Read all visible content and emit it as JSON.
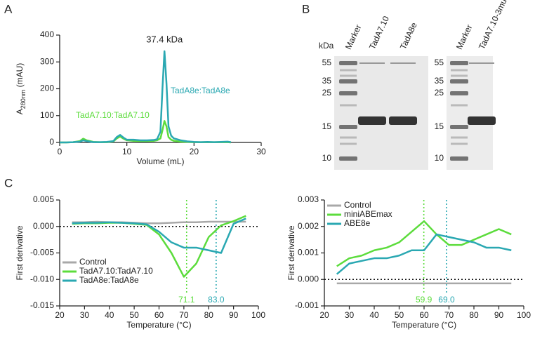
{
  "panel_labels": [
    "A",
    "B",
    "C"
  ],
  "chart_data": [
    {
      "type": "line",
      "x_label": "Volume (mL)",
      "y_label": [
        "A",
        "280nm",
        " (mAU)"
      ],
      "annotations": [
        "37.4 kDa"
      ],
      "x": [
        0,
        1,
        2,
        3,
        3.5,
        4,
        5,
        6,
        7,
        8,
        8.5,
        9,
        9.5,
        10,
        11,
        12,
        13,
        14,
        14.5,
        15,
        15.3,
        15.6,
        15.9,
        16.2,
        16.6,
        17,
        18,
        19,
        20,
        21,
        22,
        23,
        24,
        25,
        25.5
      ],
      "series": [
        {
          "name": "TadA7.10:TadA7.10",
          "color": "#5cdc3c",
          "values": [
            0,
            0,
            1,
            5,
            14,
            8,
            2,
            1,
            1,
            4,
            15,
            22,
            14,
            8,
            6,
            5,
            5,
            6,
            8,
            15,
            45,
            80,
            60,
            20,
            10,
            6,
            3,
            2,
            1,
            1,
            1,
            1,
            1,
            1,
            0
          ]
        },
        {
          "name": "TadA8e:TadA8e",
          "color": "#2aa8b2",
          "values": [
            0,
            0,
            1,
            3,
            8,
            5,
            1,
            1,
            2,
            5,
            20,
            28,
            18,
            10,
            10,
            8,
            8,
            9,
            12,
            40,
            200,
            340,
            220,
            60,
            25,
            15,
            8,
            4,
            2,
            1,
            2,
            1,
            2,
            3,
            1
          ]
        }
      ],
      "xlim": [
        0,
        30
      ],
      "xticks": [
        0,
        10,
        20,
        30
      ],
      "ylim": [
        0,
        400
      ],
      "yticks": [
        0,
        100,
        200,
        300,
        400
      ]
    },
    {
      "type": "line",
      "x_label": "Temperature (°C)",
      "y_label": [
        "First derivative"
      ],
      "legend": "lower left",
      "x": [
        25,
        30,
        35,
        40,
        45,
        50,
        55,
        60,
        65,
        70,
        75,
        80,
        85,
        90,
        95
      ],
      "series": [
        {
          "name": "Control",
          "color": "#a8a8a8",
          "values": [
            0.0008,
            0.0008,
            0.0009,
            0.0008,
            0.0008,
            0.0007,
            0.0006,
            0.0006,
            0.0007,
            0.0008,
            0.0008,
            0.0009,
            0.0009,
            0.0009,
            0.0009
          ]
        },
        {
          "name": "TadA7.10:TadA7.10",
          "color": "#5cdc3c",
          "values": [
            0.0005,
            0.0006,
            0.0006,
            0.0007,
            0.0007,
            0.0005,
            0.0003,
            -0.0015,
            -0.005,
            -0.0095,
            -0.007,
            -0.002,
            0.0002,
            0.001,
            0.002
          ]
        },
        {
          "name": "TadA8e:TadA8e",
          "color": "#2aa8b2",
          "values": [
            0.0006,
            0.0007,
            0.0007,
            0.0008,
            0.0007,
            0.0006,
            0.0004,
            -0.001,
            -0.003,
            -0.004,
            -0.004,
            -0.0045,
            -0.005,
            0.0005,
            0.0015
          ]
        }
      ],
      "hline": 0,
      "vlines": [
        {
          "value": 71.1,
          "label": "71.1",
          "color": "#5cdc3c"
        },
        {
          "value": 83.0,
          "label": "83.0",
          "color": "#2aa8b2"
        }
      ],
      "xlim": [
        20,
        100
      ],
      "xticks": [
        20,
        30,
        40,
        50,
        60,
        70,
        80,
        90,
        100
      ],
      "ylim": [
        -0.015,
        0.005
      ],
      "yticks": [
        -0.015,
        {
          "value": -0.01,
          "label": "-0.010"
        },
        -0.005,
        {
          "value": 0,
          "label": "0.000"
        },
        0.005
      ]
    },
    {
      "type": "line",
      "x_label": "Temperature (°C)",
      "y_label": [
        "First derivative"
      ],
      "legend": "upper left",
      "x": [
        25,
        30,
        35,
        40,
        45,
        50,
        55,
        60,
        65,
        70,
        75,
        80,
        85,
        90,
        95
      ],
      "series": [
        {
          "name": "Control",
          "color": "#a8a8a8",
          "values": [
            -0.00015,
            -0.00015,
            -0.00015,
            -0.00015,
            -0.00015,
            -0.00015,
            -0.00015,
            -0.00015,
            -0.00015,
            -0.00015,
            -0.00015,
            -0.00015,
            -0.00015,
            -0.00015,
            -0.00015
          ]
        },
        {
          "name": "miniABEmax",
          "color": "#5cdc3c",
          "values": [
            0.0005,
            0.0008,
            0.0009,
            0.0011,
            0.0012,
            0.0014,
            0.0018,
            0.0022,
            0.0017,
            0.0013,
            0.0013,
            0.0015,
            0.0017,
            0.0019,
            0.0017
          ]
        },
        {
          "name": "ABE8e",
          "color": "#2aa8b2",
          "values": [
            0.0002,
            0.0006,
            0.0007,
            0.0008,
            0.0008,
            0.0009,
            0.0011,
            0.0011,
            0.0017,
            0.0016,
            0.0015,
            0.0014,
            0.0012,
            0.0012,
            0.0011
          ]
        }
      ],
      "hline": 0,
      "vlines": [
        {
          "value": 59.9,
          "label": "59.9",
          "color": "#5cdc3c"
        },
        {
          "value": 69.0,
          "label": "69.0",
          "color": "#2aa8b2"
        }
      ],
      "xlim": [
        20,
        100
      ],
      "xticks": [
        20,
        30,
        40,
        50,
        60,
        70,
        80,
        90,
        100
      ],
      "ylim": [
        -0.001,
        0.003
      ],
      "yticks": [
        -0.001,
        {
          "value": 0,
          "label": "0.000"
        },
        0.001,
        0.002,
        0.003
      ]
    }
  ],
  "gel": {
    "unit": "kDa",
    "gels": [
      {
        "lanes": [
          "Marker",
          "TadA7.10",
          "TadA8e"
        ],
        "markers": [
          55,
          35,
          25,
          15,
          10
        ]
      },
      {
        "lanes": [
          "Marker",
          "TadA7.10-3mut"
        ],
        "markers": [
          55,
          35,
          25,
          15,
          10
        ]
      }
    ]
  }
}
